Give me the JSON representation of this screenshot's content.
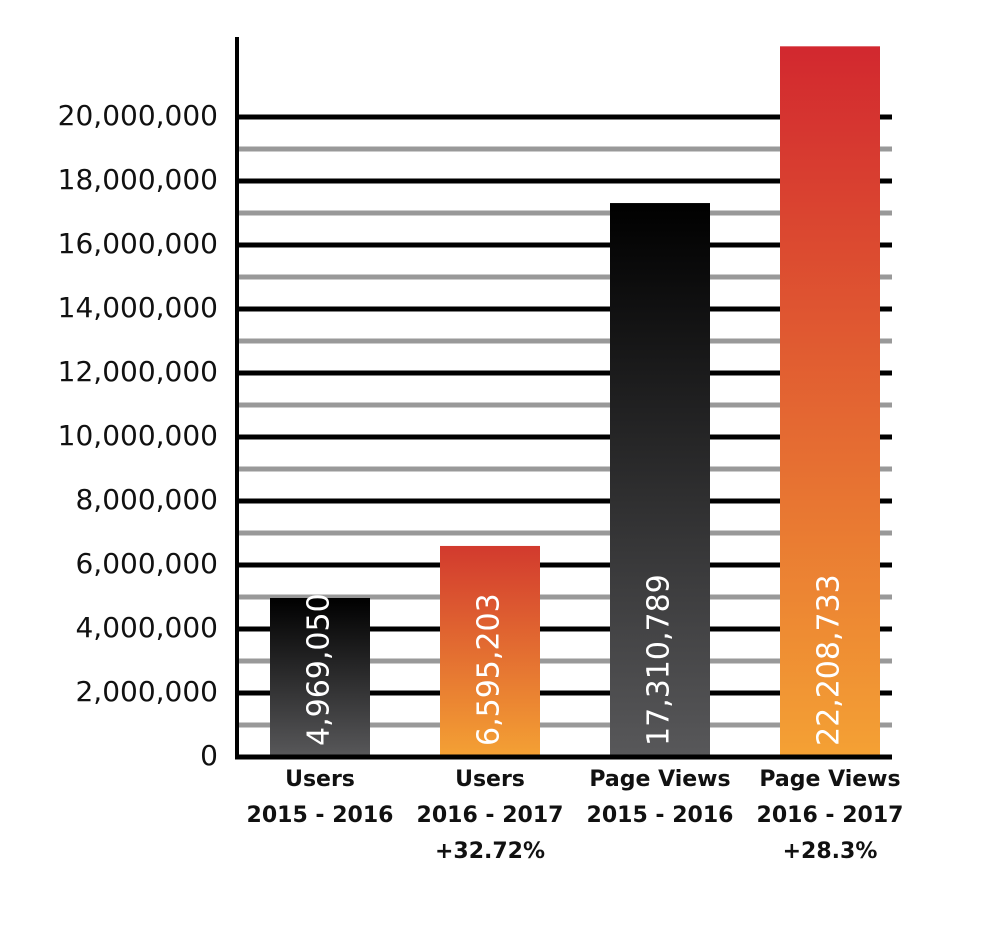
{
  "chart_data": {
    "type": "bar",
    "categories": [
      [
        "Users",
        "2015 - 2016"
      ],
      [
        "Users",
        "2016 - 2017"
      ],
      [
        "Page Views",
        "2015 - 2016"
      ],
      [
        "Page Views",
        "2016 - 2017"
      ]
    ],
    "growth_labels": [
      null,
      "+32.72%",
      null,
      "+28.3%"
    ],
    "values": [
      4969050,
      6595203,
      17310789,
      22208733
    ],
    "value_labels": [
      "4,969,050",
      "6,595,203",
      "17,310,789",
      "22,208,733"
    ],
    "color_gradients": [
      [
        "#000000",
        "#58585a"
      ],
      [
        "#d23a2e",
        "#f4a134"
      ],
      [
        "#000000",
        "#58585a"
      ],
      [
        "#d2282f",
        "#f4a134"
      ]
    ],
    "ylim": [
      0,
      22500000
    ],
    "yticks": [
      0,
      {
        "value": 2000000,
        "label": "2,000,000"
      },
      {
        "value": 4000000,
        "label": "4,000,000"
      },
      {
        "value": 6000000,
        "label": "6,000,000"
      },
      {
        "value": 8000000,
        "label": "8,000,000"
      },
      {
        "value": 10000000,
        "label": "10,000,000"
      },
      {
        "value": 12000000,
        "label": "12,000,000"
      },
      {
        "value": 14000000,
        "label": "14,000,000"
      },
      {
        "value": 16000000,
        "label": "16,000,000"
      },
      {
        "value": 18000000,
        "label": "18,000,000"
      },
      {
        "value": 20000000,
        "label": "20,000,000"
      }
    ],
    "minor_yticks": [
      1000000,
      3000000,
      5000000,
      7000000,
      9000000,
      11000000,
      13000000,
      15000000,
      17000000,
      19000000
    ],
    "grid": true
  }
}
